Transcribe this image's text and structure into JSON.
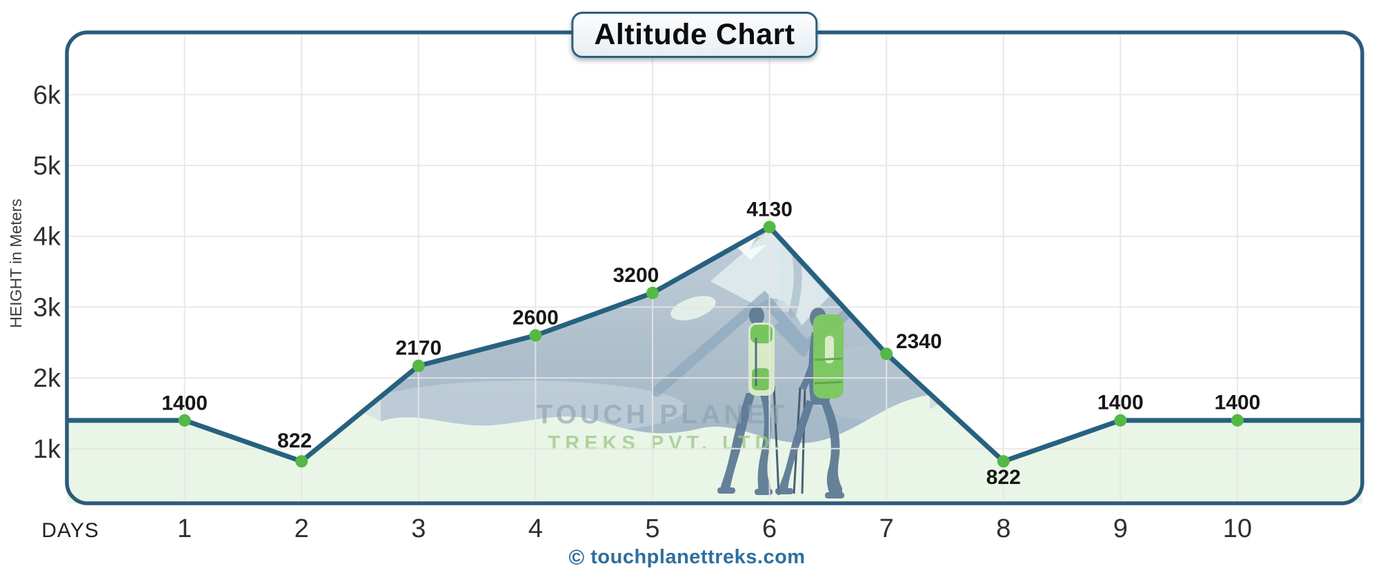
{
  "title": {
    "label": "Altitude Chart"
  },
  "axes": {
    "y_label": "HEIGHT in Meters",
    "x_label": "DAYS",
    "y_tick_labels": [
      "1k",
      "2k",
      "3k",
      "4k",
      "5k",
      "6k"
    ],
    "x_tick_labels": [
      "1",
      "2",
      "3",
      "4",
      "5",
      "6",
      "7",
      "8",
      "9",
      "10"
    ]
  },
  "watermark": {
    "line1": "TOUCH PLANET",
    "line2": "TREKS PVT. LTD."
  },
  "footer": {
    "symbol": "©",
    "site": "touchplanettreks.com"
  },
  "colors": {
    "line": "#27617f",
    "dot": "#54b845",
    "area": "#e9f5e7",
    "border": "#2b5b7a",
    "grid": "#e8e6e3",
    "point_label": "#161616",
    "axis_text": "#2f2f2f",
    "footer_text": "#2d6e9e",
    "mountain_top": "#c9d6df",
    "mountain_bottom": "#9db3c3",
    "ridge": "#8ca7bc",
    "snow": "#e3edf0",
    "trekker_body": "#5c7994",
    "backpack_light": "#dcedc6",
    "backpack_green": "#7bc95c",
    "backpack_patch": "#74c455",
    "pole": "#3d566e",
    "watermark_gray": "#8ca0b0",
    "watermark_green": "#9cc682"
  },
  "chart_data": {
    "type": "area",
    "title": "Altitude Chart",
    "xlabel": "DAYS",
    "ylabel": "HEIGHT in Meters",
    "x": [
      1,
      2,
      3,
      4,
      5,
      6,
      7,
      8,
      9,
      10
    ],
    "values": [
      1400,
      822,
      2170,
      2600,
      3200,
      4130,
      2340,
      822,
      1400,
      1400
    ],
    "point_labels": [
      "1400",
      "822",
      "2170",
      "2600",
      "3200",
      "4130",
      "2340",
      "822",
      "1400",
      "1400"
    ],
    "y_ticks": [
      1000,
      2000,
      3000,
      4000,
      5000,
      6000
    ],
    "y_tick_labels": [
      "1k",
      "2k",
      "3k",
      "4k",
      "5k",
      "6k"
    ],
    "ylim": [
      230,
      6880
    ],
    "grid": true,
    "legend_position": "none",
    "line_extends_to_plot_edges_at": {
      "left_value": 1400,
      "right_value": 1400
    }
  }
}
